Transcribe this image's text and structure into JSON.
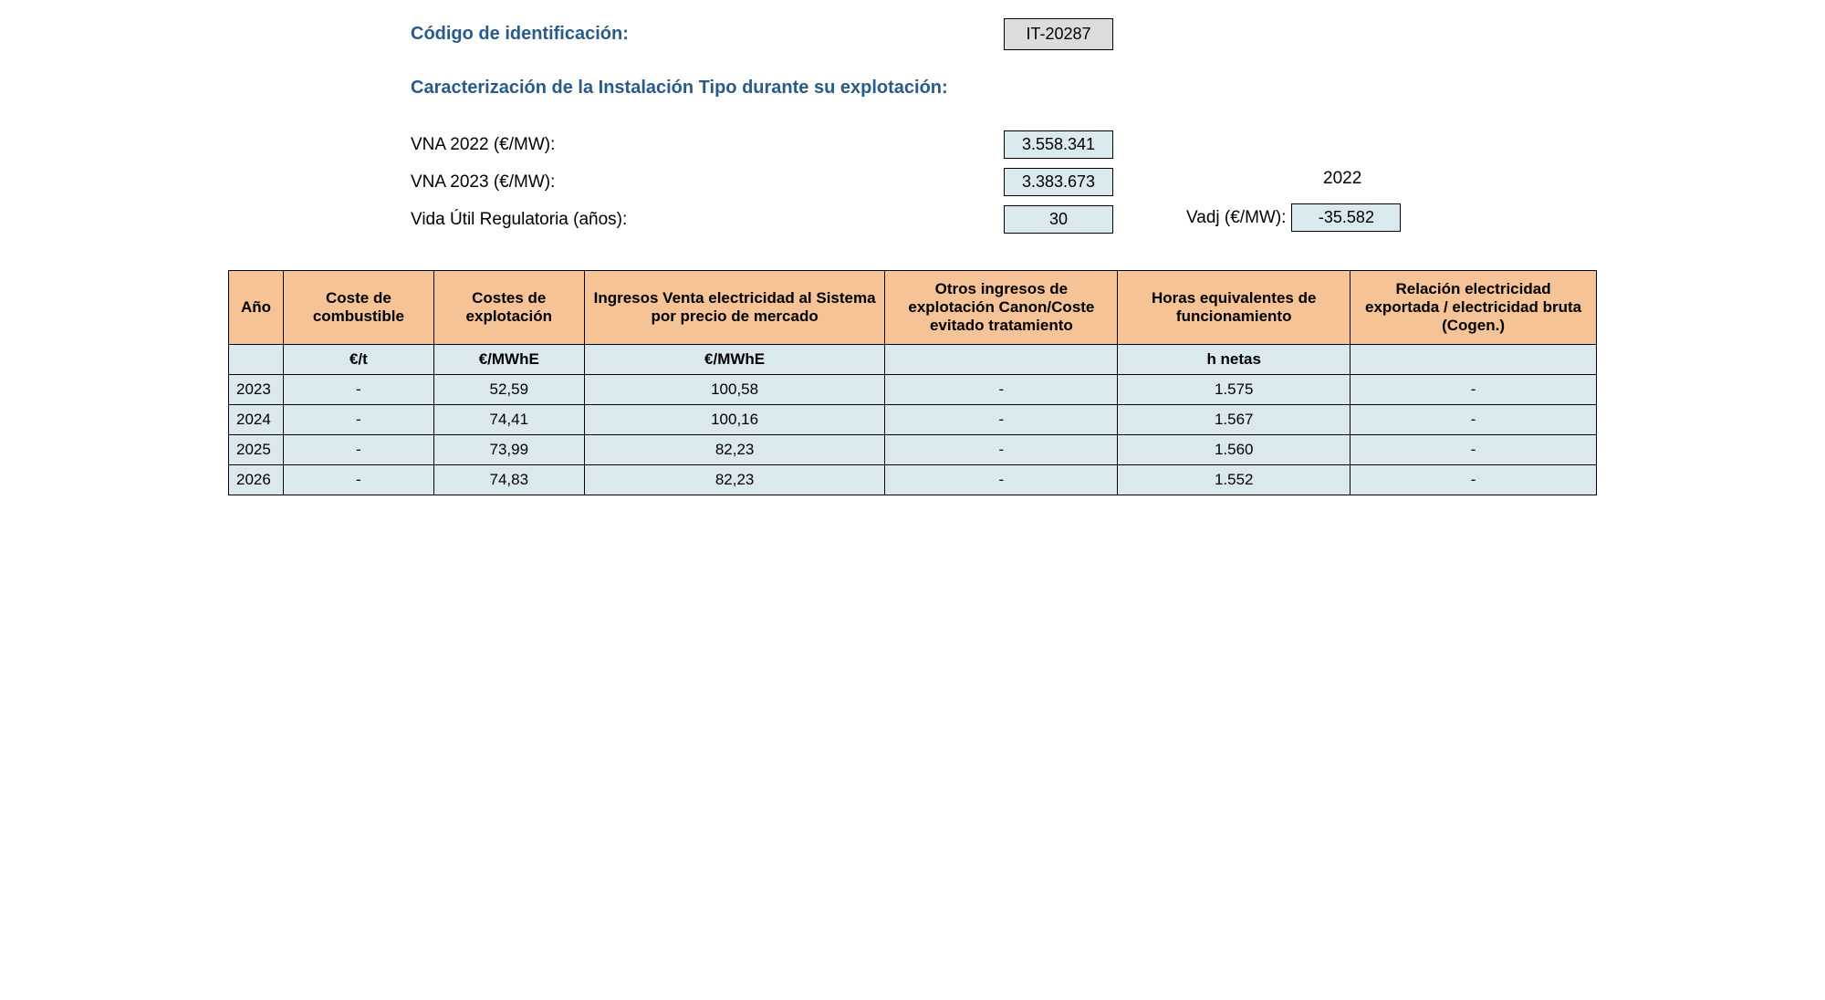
{
  "header": {
    "id_label": "Código de identificación:",
    "id_value": "IT-20287",
    "subtitle": "Caracterización de la Instalación Tipo durante su explotación:"
  },
  "params": {
    "vna2022_label": "VNA 2022 (€/MW):",
    "vna2022_value": "3.558.341",
    "vna2023_label": "VNA 2023 (€/MW):",
    "vna2023_value": "3.383.673",
    "life_label": "Vida Útil Regulatoria (años):",
    "life_value": "30",
    "side_year": "2022",
    "vadj_label": "Vadj (€/MW):",
    "vadj_value": "-35.582"
  },
  "table": {
    "headers": {
      "year": "Año",
      "fuel": "Coste de combustible",
      "opex": "Costes de explotación",
      "income": "Ingresos Venta electricidad al Sistema por precio de mercado",
      "other": "Otros ingresos de explotación Canon/Coste evitado tratamiento",
      "hours": "Horas equivalentes de funcionamiento",
      "ratio": "Relación electricidad exportada / electricidad bruta (Cogen.)"
    },
    "units": {
      "year": "",
      "fuel": "€/t",
      "opex": "€/MWhE",
      "income": "€/MWhE",
      "other": "",
      "hours": "h netas",
      "ratio": ""
    },
    "rows": [
      {
        "year": "2023",
        "fuel": "-",
        "opex": "52,59",
        "income": "100,58",
        "other": "-",
        "hours": "1.575",
        "ratio": "-"
      },
      {
        "year": "2024",
        "fuel": "-",
        "opex": "74,41",
        "income": "100,16",
        "other": "-",
        "hours": "1.567",
        "ratio": "-"
      },
      {
        "year": "2025",
        "fuel": "-",
        "opex": "73,99",
        "income": "82,23",
        "other": "-",
        "hours": "1.560",
        "ratio": "-"
      },
      {
        "year": "2026",
        "fuel": "-",
        "opex": "74,83",
        "income": "82,23",
        "other": "-",
        "hours": "1.552",
        "ratio": "-"
      }
    ]
  }
}
